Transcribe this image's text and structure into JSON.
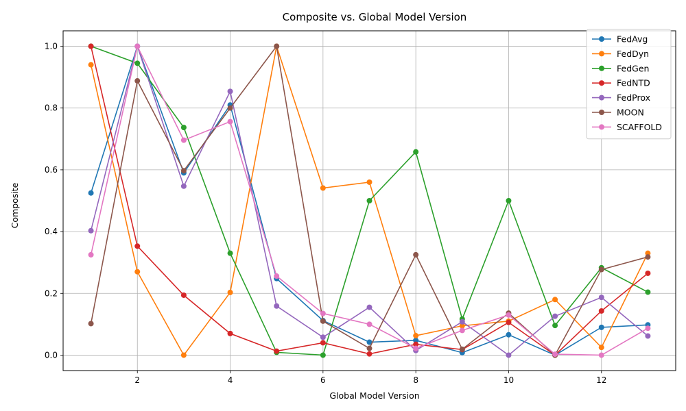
{
  "chart_data": {
    "type": "line",
    "title": "Composite vs. Global Model Version",
    "xlabel": "Global Model Version",
    "ylabel": "Composite",
    "x": [
      1,
      2,
      3,
      4,
      5,
      6,
      7,
      8,
      9,
      10,
      11,
      12,
      13
    ],
    "xlim": [
      0.4,
      13.6
    ],
    "ylim": [
      -0.05,
      1.05
    ],
    "xticks": [
      2,
      4,
      6,
      8,
      10,
      12
    ],
    "yticks": [
      0.0,
      0.2,
      0.4,
      0.6,
      0.8,
      1.0
    ],
    "xtick_labels": [
      "2",
      "4",
      "6",
      "8",
      "10",
      "12"
    ],
    "ytick_labels": [
      "0.0",
      "0.2",
      "0.4",
      "0.6",
      "0.8",
      "1.0"
    ],
    "grid": true,
    "legend_position": "top-right",
    "series": [
      {
        "name": "FedAvg",
        "color": "#1f77b4",
        "values": [
          0.525,
          1.0,
          0.59,
          0.81,
          0.248,
          0.112,
          0.042,
          0.048,
          0.008,
          0.066,
          0.0,
          0.09,
          0.098
        ]
      },
      {
        "name": "FedDyn",
        "color": "#ff7f0e",
        "values": [
          0.94,
          0.27,
          0.0,
          0.203,
          1.0,
          0.541,
          0.56,
          0.063,
          0.095,
          0.11,
          0.18,
          0.025,
          0.33
        ]
      },
      {
        "name": "FedGen",
        "color": "#2ca02c",
        "values": [
          1.0,
          0.945,
          0.737,
          0.33,
          0.009,
          0.0,
          0.5,
          0.658,
          0.117,
          0.5,
          0.096,
          0.283,
          0.204
        ]
      },
      {
        "name": "FedNTD",
        "color": "#d62728",
        "values": [
          1.0,
          0.353,
          0.194,
          0.07,
          0.013,
          0.04,
          0.004,
          0.035,
          0.018,
          0.106,
          0.0,
          0.143,
          0.265
        ]
      },
      {
        "name": "FedProx",
        "color": "#9467bd",
        "values": [
          0.403,
          1.0,
          0.547,
          0.854,
          0.159,
          0.058,
          0.155,
          0.015,
          0.108,
          0.0,
          0.126,
          0.187,
          0.062
        ]
      },
      {
        "name": "MOON",
        "color": "#8c564b",
        "values": [
          0.102,
          0.888,
          0.597,
          0.8,
          1.0,
          0.11,
          0.022,
          0.325,
          0.019,
          0.136,
          0.0,
          0.277,
          0.318
        ]
      },
      {
        "name": "SCAFFOLD",
        "color": "#e377c2",
        "values": [
          0.325,
          1.0,
          0.696,
          0.756,
          0.256,
          0.135,
          0.1,
          0.022,
          0.08,
          0.13,
          0.003,
          0.0,
          0.087
        ]
      }
    ]
  }
}
